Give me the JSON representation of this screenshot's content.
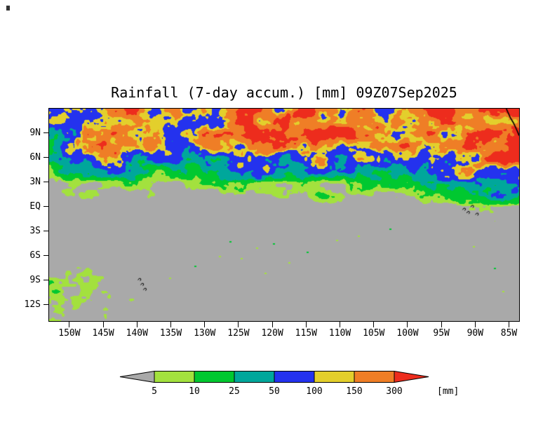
{
  "chart_data": {
    "type": "heatmap",
    "title": "Rainfall (7-day accum.) [mm] 09Z07Sep2025",
    "units": "mm",
    "lon_min": -153,
    "lon_max": -83.5,
    "lat_min": -14,
    "lat_max": 12,
    "x_ticks": [
      {
        "label": "150W",
        "lon": -150
      },
      {
        "label": "145W",
        "lon": -145
      },
      {
        "label": "140W",
        "lon": -140
      },
      {
        "label": "135W",
        "lon": -135
      },
      {
        "label": "130W",
        "lon": -130
      },
      {
        "label": "125W",
        "lon": -125
      },
      {
        "label": "120W",
        "lon": -120
      },
      {
        "label": "115W",
        "lon": -115
      },
      {
        "label": "110W",
        "lon": -110
      },
      {
        "label": "105W",
        "lon": -105
      },
      {
        "label": "100W",
        "lon": -100
      },
      {
        "label": "95W",
        "lon": -95
      },
      {
        "label": "90W",
        "lon": -90
      },
      {
        "label": "85W",
        "lon": -85
      }
    ],
    "y_ticks": [
      {
        "label": "9N",
        "lat": 9
      },
      {
        "label": "6N",
        "lat": 6
      },
      {
        "label": "3N",
        "lat": 3
      },
      {
        "label": "EQ",
        "lat": 0
      },
      {
        "label": "3S",
        "lat": -3
      },
      {
        "label": "6S",
        "lat": -6
      },
      {
        "label": "9S",
        "lat": -9
      },
      {
        "label": "12S",
        "lat": -12
      }
    ],
    "colorbar": {
      "position": "bottom",
      "levels": [
        5,
        10,
        25,
        50,
        100,
        150,
        300
      ],
      "colors": [
        "#a9a9a9",
        "#a3e13e",
        "#00c830",
        "#00a79b",
        "#2432ee",
        "#e3cf2c",
        "#ef7e26",
        "#ed2c1d"
      ],
      "units_label": "[mm]"
    },
    "field": {
      "description": "Approximate 7-day accumulated rainfall (mm) read from the map on a coarse lon/lat grid. ITCZ band of heavy rain (150-300+ mm, orange/red with blue fringes) spans about 5N-12N across the whole domain, strongest near 112W and 85W; speckled light rain (5-25 mm) near 6S-14S west of 138W; dry gray (<5 mm) elsewhere.",
      "grid_lats": [
        12,
        9,
        6,
        3,
        0,
        -3,
        -6,
        -9,
        -12,
        -14
      ],
      "grid_lons": [
        -152.5,
        -147.5,
        -142.5,
        -137.5,
        -132.5,
        -127.5,
        -122.5,
        -117.5,
        -112.5,
        -107.5,
        -102.5,
        -97.5,
        -92.5,
        -87.5,
        -82.5
      ],
      "grid_mm": [
        [
          60,
          90,
          190,
          160,
          110,
          130,
          250,
          280,
          300,
          250,
          90,
          200,
          230,
          280,
          300
        ],
        [
          50,
          140,
          200,
          120,
          100,
          200,
          260,
          200,
          310,
          220,
          250,
          150,
          220,
          260,
          320
        ],
        [
          25,
          60,
          90,
          40,
          30,
          80,
          120,
          70,
          80,
          70,
          60,
          90,
          130,
          180,
          220
        ],
        [
          6,
          8,
          8,
          4,
          4,
          6,
          8,
          6,
          10,
          12,
          10,
          15,
          25,
          45,
          60
        ],
        [
          0.5,
          0.5,
          0.5,
          0.5,
          0.5,
          0.5,
          0.5,
          0.5,
          0.5,
          0.5,
          1,
          1.5,
          2,
          3,
          2
        ],
        [
          0.4,
          0.4,
          0.4,
          0.4,
          0.4,
          0.4,
          0.4,
          0.4,
          0.4,
          0.4,
          0.4,
          0.5,
          0.8,
          1,
          1
        ],
        [
          2,
          1.5,
          1,
          0.8,
          0.5,
          0.5,
          0.4,
          0.4,
          0.4,
          0.4,
          0.4,
          0.4,
          0.5,
          0.8,
          1
        ],
        [
          8,
          5,
          3,
          1.5,
          0.8,
          0.8,
          0.5,
          0.4,
          0.4,
          0.4,
          0.4,
          0.4,
          0.4,
          0.5,
          0.8
        ],
        [
          5,
          4,
          2,
          1,
          0.8,
          0.5,
          0.4,
          0.4,
          0.4,
          0.4,
          0.4,
          0.4,
          0.4,
          0.4,
          0.5
        ],
        [
          3,
          3,
          1.5,
          0.8,
          0.5,
          0.4,
          0.4,
          0.4,
          0.4,
          0.4,
          0.4,
          0.4,
          0.4,
          0.4,
          0.4
        ]
      ]
    },
    "overlays": {
      "coastline_lonlat": [
        [
          -85.4,
          12
        ],
        [
          -84.8,
          10.9
        ],
        [
          -84.3,
          10.2
        ],
        [
          -83.8,
          9.3
        ],
        [
          -83.5,
          8.7
        ]
      ],
      "islands_lonlat": [
        [
          -91.6,
          -0.3
        ],
        [
          -91.0,
          -0.7
        ],
        [
          -90.4,
          0.05
        ],
        [
          -89.7,
          -0.9
        ],
        [
          -139.6,
          -8.9
        ],
        [
          -139.2,
          -9.5
        ],
        [
          -138.8,
          -10.1
        ]
      ],
      "rain_speckles_lonlat": [
        [
          -126.2,
          -4.3
        ],
        [
          -124.6,
          -6.4
        ],
        [
          -122.3,
          -5.1
        ],
        [
          -119.8,
          -4.6
        ],
        [
          -127.8,
          -6.1
        ],
        [
          -117.5,
          -6.9
        ],
        [
          -114.8,
          -5.6
        ],
        [
          -110.5,
          -4.1
        ],
        [
          -107.3,
          -3.6
        ],
        [
          -131.4,
          -7.3
        ],
        [
          -135.2,
          -8.8
        ],
        [
          -90.2,
          -4.9
        ],
        [
          -87.1,
          -7.6
        ],
        [
          -85.9,
          -10.4
        ],
        [
          -121.0,
          -8.2
        ],
        [
          -102.6,
          -2.8
        ]
      ]
    }
  }
}
